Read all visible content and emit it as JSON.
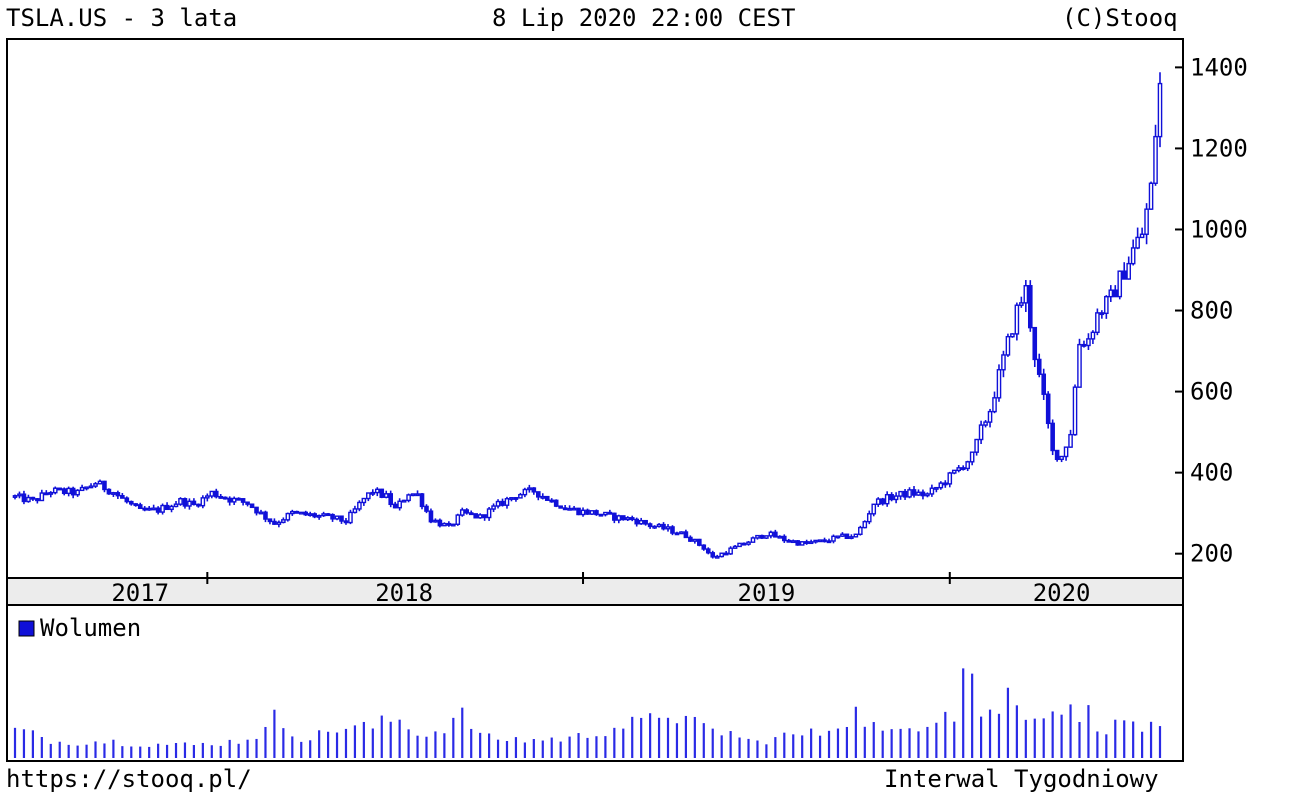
{
  "header": {
    "title": "TSLA.US - 3 lata",
    "date": "8 Lip 2020 22:00 CEST",
    "copyright": "(C)Stooq"
  },
  "footer": {
    "url": "https://stooq.pl/",
    "interval": "Interwal Tygodniowy"
  },
  "colors": {
    "series": "#1010d8",
    "volume": "#2a2ae6",
    "axis_band": "#ececec"
  },
  "chart_data": [
    {
      "type": "candlestick",
      "title": "TSLA.US - 3 lata",
      "ylim": [
        140,
        1470
      ],
      "yticks": [
        200,
        400,
        600,
        800,
        1000,
        1200,
        1400
      ],
      "xticks": [
        "2017",
        "2018",
        "2019",
        "2020"
      ],
      "grid": false,
      "y_axis_position": "right",
      "keyframes": [
        [
          0,
          340
        ],
        [
          4,
          330
        ],
        [
          8,
          355
        ],
        [
          14,
          350
        ],
        [
          18,
          375
        ],
        [
          22,
          352
        ],
        [
          24,
          335
        ],
        [
          28,
          305
        ],
        [
          32,
          308
        ],
        [
          37,
          330
        ],
        [
          40,
          320
        ],
        [
          44,
          350
        ],
        [
          48,
          335
        ],
        [
          52,
          325
        ],
        [
          56,
          290
        ],
        [
          58,
          275
        ],
        [
          62,
          300
        ],
        [
          66,
          295
        ],
        [
          70,
          290
        ],
        [
          74,
          280
        ],
        [
          78,
          335
        ],
        [
          80,
          355
        ],
        [
          83,
          340
        ],
        [
          85,
          310
        ],
        [
          88,
          350
        ],
        [
          90,
          345
        ],
        [
          93,
          285
        ],
        [
          97,
          265
        ],
        [
          100,
          300
        ],
        [
          104,
          290
        ],
        [
          108,
          320
        ],
        [
          112,
          345
        ],
        [
          116,
          355
        ],
        [
          120,
          330
        ],
        [
          123,
          315
        ],
        [
          126,
          305
        ],
        [
          130,
          300
        ],
        [
          134,
          290
        ],
        [
          138,
          285
        ],
        [
          142,
          270
        ],
        [
          146,
          260
        ],
        [
          150,
          245
        ],
        [
          154,
          215
        ],
        [
          156,
          190
        ],
        [
          160,
          210
        ],
        [
          164,
          230
        ],
        [
          168,
          250
        ],
        [
          172,
          235
        ],
        [
          176,
          225
        ],
        [
          180,
          230
        ],
        [
          184,
          240
        ],
        [
          188,
          245
        ],
        [
          190,
          280
        ],
        [
          192,
          325
        ],
        [
          196,
          340
        ],
        [
          200,
          350
        ],
        [
          204,
          345
        ],
        [
          208,
          380
        ],
        [
          212,
          420
        ],
        [
          214,
          440
        ],
        [
          216,
          505
        ],
        [
          218,
          555
        ],
        [
          220,
          640
        ],
        [
          222,
          720
        ],
        [
          224,
          800
        ],
        [
          226,
          850
        ],
        [
          228,
          690
        ],
        [
          230,
          580
        ],
        [
          232,
          450
        ],
        [
          234,
          440
        ],
        [
          236,
          500
        ],
        [
          238,
          720
        ],
        [
          240,
          730
        ],
        [
          242,
          790
        ],
        [
          245,
          830
        ],
        [
          248,
          900
        ],
        [
          250,
          950
        ],
        [
          252,
          990
        ],
        [
          254,
          1100
        ],
        [
          256,
          1380
        ]
      ],
      "volume_legend": "Wolumen",
      "volume_keyframes": [
        [
          0,
          28
        ],
        [
          10,
          16
        ],
        [
          20,
          17
        ],
        [
          30,
          14
        ],
        [
          40,
          13
        ],
        [
          50,
          17
        ],
        [
          56,
          27
        ],
        [
          58,
          40
        ],
        [
          65,
          18
        ],
        [
          72,
          30
        ],
        [
          80,
          31
        ],
        [
          85,
          40
        ],
        [
          92,
          22
        ],
        [
          100,
          42
        ],
        [
          105,
          20
        ],
        [
          115,
          18
        ],
        [
          125,
          20
        ],
        [
          135,
          32
        ],
        [
          140,
          35
        ],
        [
          143,
          38
        ],
        [
          145,
          50
        ],
        [
          150,
          37
        ],
        [
          155,
          28
        ],
        [
          160,
          25
        ],
        [
          165,
          15
        ],
        [
          172,
          22
        ],
        [
          180,
          25
        ],
        [
          185,
          38
        ],
        [
          188,
          45
        ],
        [
          195,
          22
        ],
        [
          202,
          35
        ],
        [
          206,
          42
        ],
        [
          208,
          55
        ],
        [
          210,
          45
        ],
        [
          213,
          110
        ],
        [
          216,
          45
        ],
        [
          219,
          42
        ],
        [
          222,
          65
        ],
        [
          225,
          43
        ],
        [
          228,
          50
        ],
        [
          231,
          42
        ],
        [
          234,
          55
        ],
        [
          237,
          40
        ],
        [
          240,
          45
        ],
        [
          243,
          30
        ],
        [
          246,
          32
        ],
        [
          250,
          38
        ],
        [
          252,
          30
        ],
        [
          256,
          28
        ]
      ]
    }
  ]
}
